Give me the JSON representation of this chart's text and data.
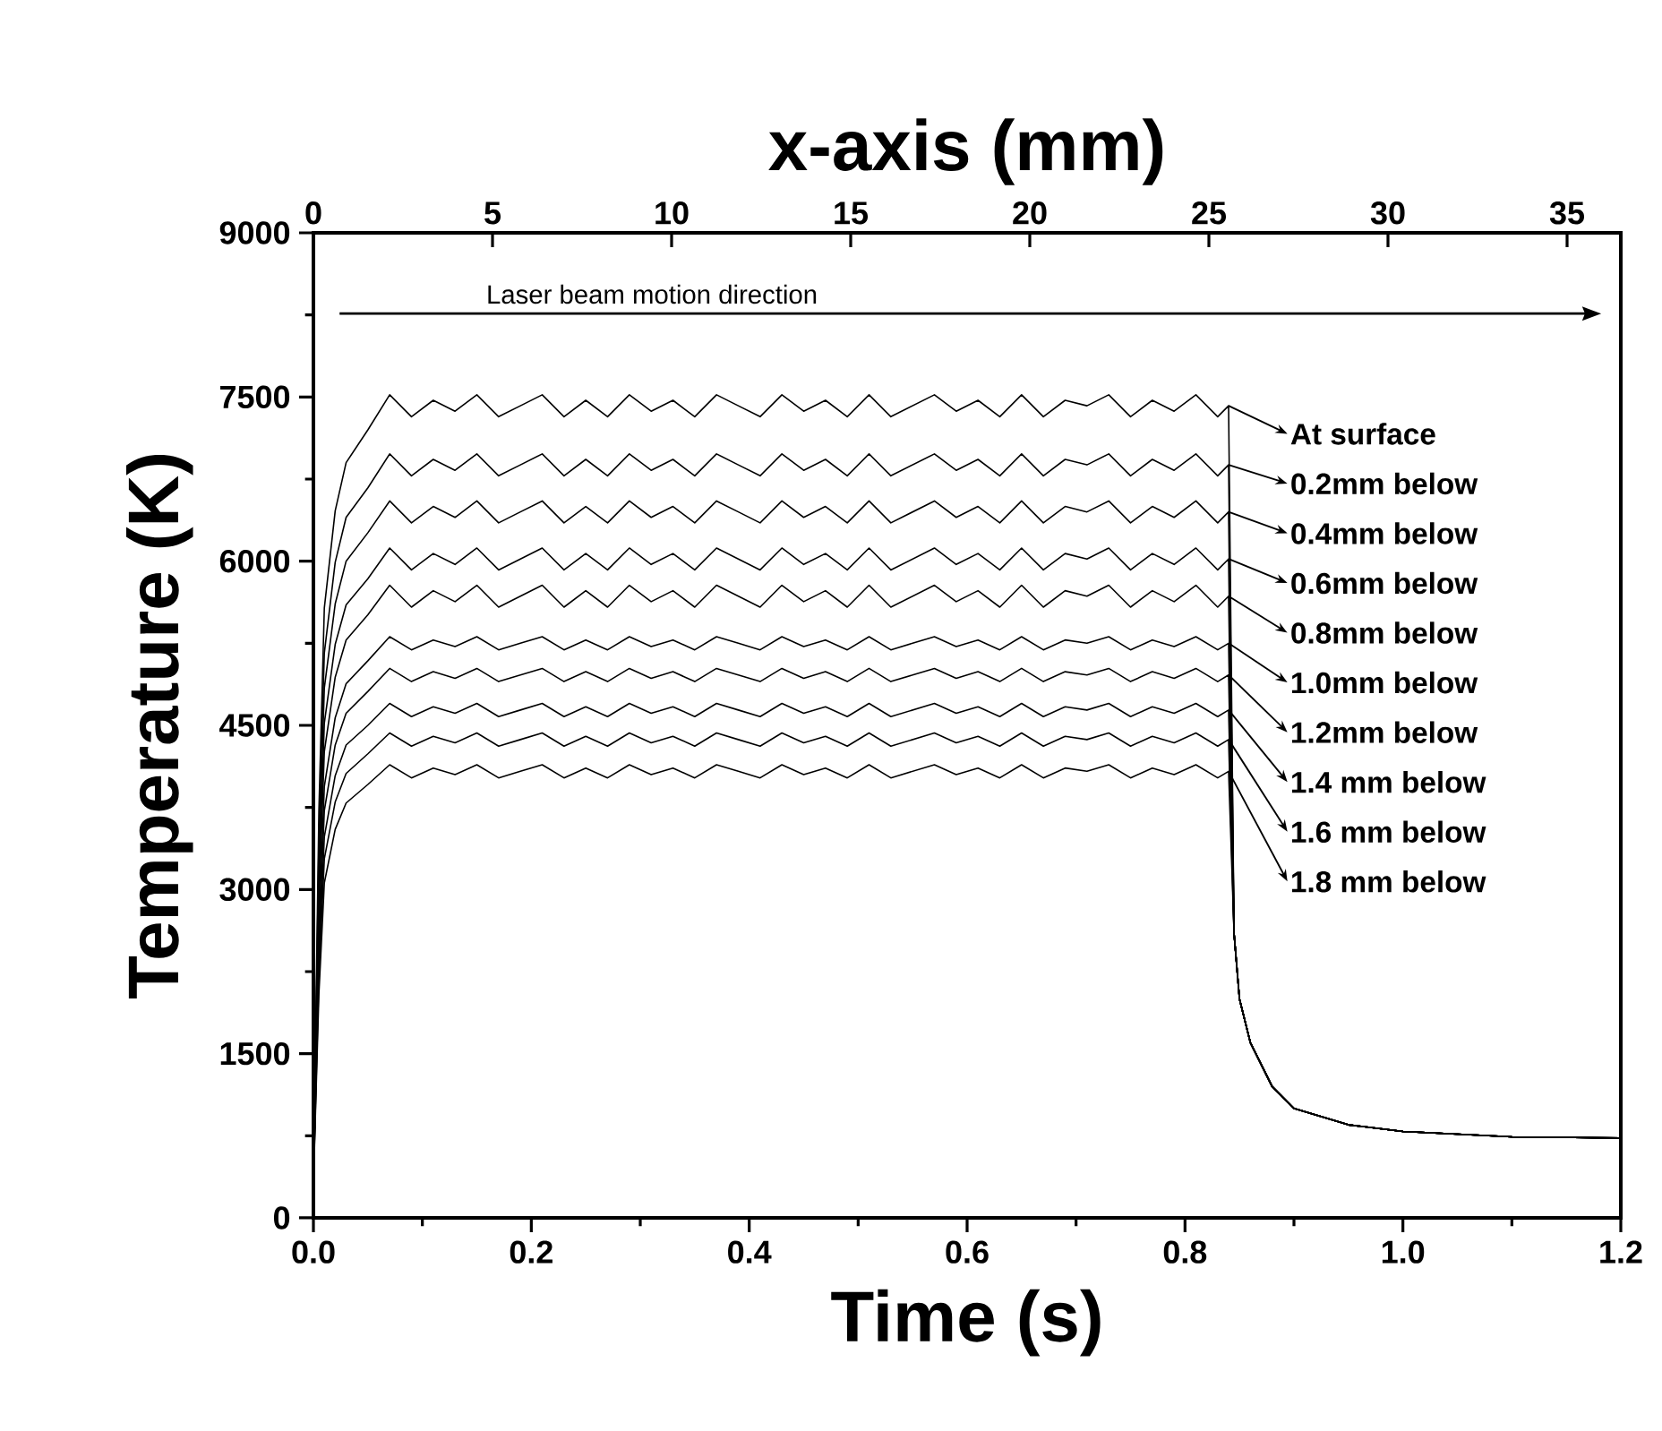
{
  "chart_data": {
    "type": "line",
    "xlabel": "Time (s)",
    "ylabel": "Temperature (K)",
    "x2label": "x-axis (mm)",
    "xlim": [
      0,
      1.2
    ],
    "ylim": [
      0,
      9000
    ],
    "xticks": [
      {
        "value": 0,
        "label": "0.0"
      },
      {
        "value": 0.2,
        "label": "0.2"
      },
      {
        "value": 0.4,
        "label": "0.4"
      },
      {
        "value": 0.6,
        "label": "0.6"
      },
      {
        "value": 0.8,
        "label": "0.8"
      },
      {
        "value": 1.0,
        "label": "1.0"
      },
      {
        "value": 1.2,
        "label": "1.2"
      }
    ],
    "yticks": [
      0,
      1500,
      3000,
      4500,
      6000,
      7500,
      9000
    ],
    "x2lim": [
      0,
      36.5
    ],
    "x2ticks": [
      0,
      5,
      10,
      15,
      20,
      25,
      30,
      35
    ],
    "annotations": [
      "Laser beam motion direction"
    ],
    "legend": "right",
    "x": [
      0,
      0.005,
      0.01,
      0.02,
      0.03,
      0.05,
      0.07,
      0.09,
      0.11,
      0.13,
      0.15,
      0.17,
      0.19,
      0.21,
      0.23,
      0.25,
      0.27,
      0.29,
      0.31,
      0.33,
      0.35,
      0.37,
      0.39,
      0.41,
      0.43,
      0.45,
      0.47,
      0.49,
      0.51,
      0.53,
      0.55,
      0.57,
      0.59,
      0.61,
      0.63,
      0.65,
      0.67,
      0.69,
      0.71,
      0.73,
      0.75,
      0.77,
      0.79,
      0.81,
      0.83,
      0.84,
      0.845,
      0.85,
      0.86,
      0.88,
      0.9,
      0.95,
      1.0,
      1.1,
      1.2
    ],
    "series": [
      {
        "name": "At surface",
        "color": "#000000",
        "values": [
          300,
          3710,
          5570,
          6460,
          6900,
          7200,
          7520,
          7320,
          7470,
          7370,
          7520,
          7320,
          7420,
          7520,
          7320,
          7470,
          7320,
          7520,
          7370,
          7470,
          7320,
          7520,
          7420,
          7320,
          7520,
          7370,
          7470,
          7320,
          7520,
          7320,
          7420,
          7520,
          7370,
          7470,
          7320,
          7520,
          7320,
          7470,
          7420,
          7520,
          7320,
          7470,
          7370,
          7520,
          7320,
          7420,
          2600,
          2000,
          1600,
          1200,
          1000,
          850,
          790,
          740,
          730
        ]
      },
      {
        "name": "0.2mm below",
        "color": "#000000",
        "values": [
          300,
          3440,
          5160,
          5990,
          6400,
          6670,
          6980,
          6780,
          6930,
          6830,
          6980,
          6780,
          6880,
          6980,
          6780,
          6930,
          6780,
          6980,
          6830,
          6930,
          6780,
          6980,
          6880,
          6780,
          6980,
          6830,
          6930,
          6780,
          6980,
          6780,
          6880,
          6980,
          6830,
          6930,
          6780,
          6980,
          6780,
          6930,
          6880,
          6980,
          6780,
          6930,
          6830,
          6980,
          6780,
          6880,
          2600,
          2000,
          1600,
          1200,
          1000,
          850,
          790,
          740,
          730
        ]
      },
      {
        "name": "0.4mm below",
        "color": "#000000",
        "values": [
          300,
          3230,
          4840,
          5610,
          6000,
          6260,
          6550,
          6350,
          6500,
          6400,
          6550,
          6350,
          6450,
          6550,
          6350,
          6500,
          6350,
          6550,
          6400,
          6500,
          6350,
          6550,
          6450,
          6350,
          6550,
          6400,
          6500,
          6350,
          6550,
          6350,
          6450,
          6550,
          6400,
          6500,
          6350,
          6550,
          6350,
          6500,
          6450,
          6550,
          6350,
          6500,
          6400,
          6550,
          6350,
          6450,
          2600,
          2000,
          1600,
          1200,
          1000,
          850,
          790,
          740,
          730
        ]
      },
      {
        "name": "0.6mm below",
        "color": "#000000",
        "values": [
          300,
          3010,
          4520,
          5240,
          5600,
          5840,
          6120,
          5920,
          6070,
          5970,
          6120,
          5920,
          6020,
          6120,
          5920,
          6070,
          5920,
          6120,
          5970,
          6070,
          5920,
          6120,
          6020,
          5920,
          6120,
          5970,
          6070,
          5920,
          6120,
          5920,
          6020,
          6120,
          5970,
          6070,
          5920,
          6120,
          5920,
          6070,
          6020,
          6120,
          5920,
          6070,
          5970,
          6120,
          5920,
          6020,
          2600,
          2000,
          1600,
          1200,
          1000,
          850,
          790,
          740,
          730
        ]
      },
      {
        "name": "0.8mm below",
        "color": "#000000",
        "values": [
          300,
          2840,
          4260,
          4940,
          5280,
          5510,
          5780,
          5580,
          5730,
          5630,
          5780,
          5580,
          5680,
          5780,
          5580,
          5730,
          5580,
          5780,
          5630,
          5730,
          5580,
          5780,
          5680,
          5580,
          5780,
          5630,
          5730,
          5580,
          5780,
          5580,
          5680,
          5780,
          5630,
          5730,
          5580,
          5780,
          5580,
          5730,
          5680,
          5780,
          5580,
          5730,
          5630,
          5780,
          5580,
          5680,
          2600,
          2000,
          1600,
          1200,
          1000,
          850,
          790,
          740,
          730
        ]
      },
      {
        "name": "1.0mm below",
        "color": "#000000",
        "values": [
          300,
          2630,
          3940,
          4570,
          4880,
          5090,
          5310,
          5190,
          5280,
          5220,
          5310,
          5190,
          5250,
          5310,
          5190,
          5280,
          5190,
          5310,
          5220,
          5280,
          5190,
          5310,
          5250,
          5190,
          5310,
          5220,
          5280,
          5190,
          5310,
          5190,
          5250,
          5310,
          5220,
          5280,
          5190,
          5310,
          5190,
          5280,
          5250,
          5310,
          5190,
          5280,
          5220,
          5310,
          5190,
          5250,
          2600,
          2000,
          1600,
          1200,
          1000,
          850,
          790,
          740,
          730
        ]
      },
      {
        "name": "1.2mm below",
        "color": "#000000",
        "values": [
          300,
          2480,
          3720,
          4320,
          4610,
          4810,
          5020,
          4900,
          4990,
          4930,
          5020,
          4900,
          4960,
          5020,
          4900,
          4990,
          4900,
          5020,
          4930,
          4990,
          4900,
          5020,
          4960,
          4900,
          5020,
          4930,
          4990,
          4900,
          5020,
          4900,
          4960,
          5020,
          4930,
          4990,
          4900,
          5020,
          4900,
          4990,
          4960,
          5020,
          4900,
          4990,
          4930,
          5020,
          4900,
          4960,
          2600,
          2000,
          1600,
          1200,
          1000,
          850,
          790,
          740,
          730
        ]
      },
      {
        "name": "1.4 mm below",
        "color": "#000000",
        "values": [
          300,
          2320,
          3480,
          4040,
          4320,
          4500,
          4700,
          4580,
          4670,
          4610,
          4700,
          4580,
          4640,
          4700,
          4580,
          4670,
          4580,
          4700,
          4610,
          4670,
          4580,
          4700,
          4640,
          4580,
          4700,
          4610,
          4670,
          4580,
          4700,
          4580,
          4640,
          4700,
          4610,
          4670,
          4580,
          4700,
          4580,
          4670,
          4640,
          4700,
          4580,
          4670,
          4610,
          4700,
          4580,
          4640,
          2600,
          2000,
          1600,
          1200,
          1000,
          850,
          790,
          740,
          730
        ]
      },
      {
        "name": "1.6 mm below",
        "color": "#000000",
        "values": [
          300,
          2190,
          3280,
          3800,
          4060,
          4240,
          4430,
          4310,
          4400,
          4340,
          4430,
          4310,
          4370,
          4430,
          4310,
          4400,
          4310,
          4430,
          4340,
          4400,
          4310,
          4430,
          4370,
          4310,
          4430,
          4340,
          4400,
          4310,
          4430,
          4310,
          4370,
          4430,
          4340,
          4400,
          4310,
          4430,
          4310,
          4400,
          4370,
          4430,
          4310,
          4400,
          4340,
          4430,
          4310,
          4370,
          2600,
          2000,
          1600,
          1200,
          1000,
          850,
          790,
          740,
          730
        ]
      },
      {
        "name": "1.8 mm below",
        "color": "#000000",
        "values": [
          300,
          2040,
          3060,
          3550,
          3790,
          3960,
          4140,
          4020,
          4110,
          4050,
          4140,
          4020,
          4080,
          4140,
          4020,
          4110,
          4020,
          4140,
          4050,
          4110,
          4020,
          4140,
          4080,
          4020,
          4140,
          4050,
          4110,
          4020,
          4140,
          4020,
          4080,
          4140,
          4050,
          4110,
          4020,
          4140,
          4020,
          4110,
          4080,
          4140,
          4020,
          4110,
          4050,
          4140,
          4020,
          4080,
          2600,
          2000,
          1600,
          1200,
          1000,
          850,
          790,
          740,
          730
        ]
      }
    ]
  }
}
